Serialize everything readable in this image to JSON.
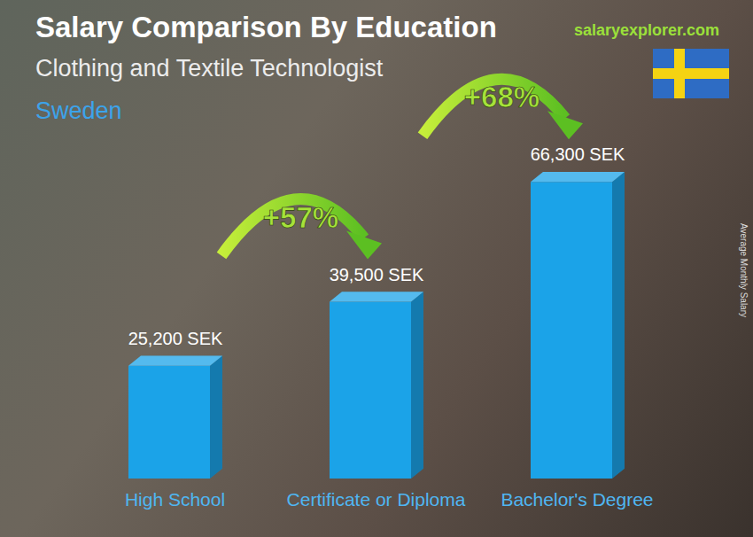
{
  "chart_data": {
    "type": "bar",
    "title": "Salary Comparison By Education",
    "subtitle": "Clothing and Textile Technologist",
    "region": "Sweden",
    "source": "salaryexplorer.com",
    "ylabel": "Average Monthly Salary",
    "categories": [
      "High School",
      "Certificate or Diploma",
      "Bachelor's Degree"
    ],
    "values": [
      25200,
      39500,
      66300
    ],
    "value_labels": [
      "25,200 SEK",
      "39,500 SEK",
      "66,300 SEK"
    ],
    "data_labels": true,
    "color": "#1ba3e8",
    "ylim": [
      0,
      80000
    ],
    "grid": false,
    "tick_labels": "x",
    "annotations": [
      "+57%",
      "+68%"
    ]
  }
}
